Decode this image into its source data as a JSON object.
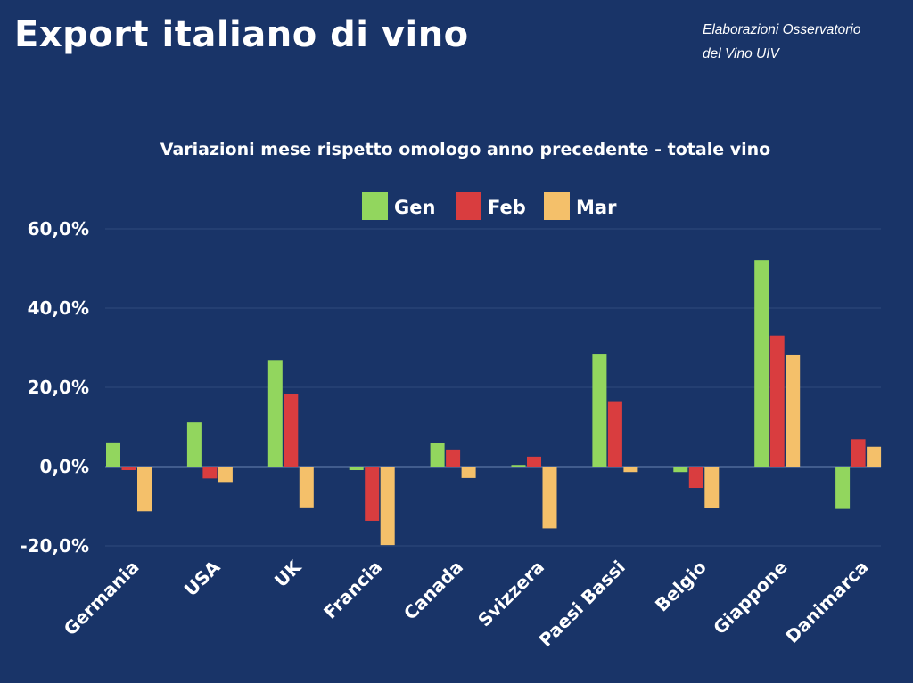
{
  "header": {
    "title": "Export italiano di vino",
    "source_line1": "Elaborazioni Osservatorio",
    "source_line2": "del Vino UIV"
  },
  "chart_data": {
    "type": "bar",
    "title": "Variazioni mese rispetto omologo anno precedente - totale vino",
    "xlabel": "",
    "ylabel": "",
    "ylim": [
      -20,
      60
    ],
    "yticks": [
      60,
      40,
      20,
      0,
      -20
    ],
    "ytick_labels": [
      "60,0%",
      "40,0%",
      "20,0%",
      "0,0%",
      "-20,0%"
    ],
    "grid": true,
    "legend_position": "top-center",
    "categories": [
      "Germania",
      "USA",
      "UK",
      "Francia",
      "Canada",
      "Svizzera",
      "Paesi Bassi",
      "Belgio",
      "Giappone",
      "Danimarca"
    ],
    "series": [
      {
        "name": "Gen",
        "color": "#92d65e",
        "values": [
          6.1,
          11.2,
          26.9,
          -0.9,
          6.0,
          0.4,
          28.3,
          -1.4,
          52.1,
          -10.7
        ]
      },
      {
        "name": "Feb",
        "color": "#d93d3f",
        "values": [
          -0.9,
          -3.0,
          18.2,
          -13.7,
          4.3,
          2.5,
          16.5,
          -5.4,
          33.1,
          6.9
        ]
      },
      {
        "name": "Mar",
        "color": "#f4c06a",
        "values": [
          -11.3,
          -3.9,
          -10.3,
          -19.8,
          -2.9,
          -15.6,
          -1.4,
          -10.4,
          28.1,
          5.0
        ]
      }
    ]
  }
}
